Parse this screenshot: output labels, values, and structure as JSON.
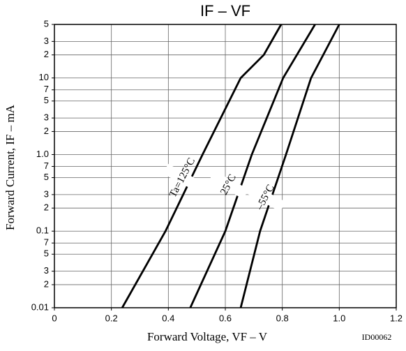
{
  "chart_data": {
    "type": "line",
    "title": "IF – VF",
    "xlabel": "Forward Voltage, VF – V",
    "ylabel": "Forward Current, IF – mA",
    "note": "ID00062",
    "log_y": true,
    "grid": true,
    "xlim": [
      0,
      1.2
    ],
    "xticks": [
      0,
      0.2,
      0.4,
      0.6,
      0.8,
      {
        "value": 1.0,
        "label": "1.0"
      },
      1.2
    ],
    "ylim": [
      0.01,
      50
    ],
    "yticks": [
      0.01,
      {
        "value": 0.02,
        "label": "2"
      },
      {
        "value": 0.03,
        "label": "3"
      },
      {
        "value": 0.05,
        "label": "5"
      },
      {
        "value": 0.07,
        "label": "7"
      },
      0.1,
      {
        "value": 0.2,
        "label": "2"
      },
      {
        "value": 0.3,
        "label": "3"
      },
      {
        "value": 0.5,
        "label": "5"
      },
      {
        "value": 0.7,
        "label": "7"
      },
      {
        "value": 1,
        "label": "1.0"
      },
      {
        "value": 2,
        "label": "2"
      },
      {
        "value": 3,
        "label": "3"
      },
      {
        "value": 5,
        "label": "5"
      },
      {
        "value": 7,
        "label": "7"
      },
      10,
      {
        "value": 20,
        "label": "2"
      },
      {
        "value": 30,
        "label": "3"
      },
      {
        "value": 50,
        "label": "5"
      }
    ],
    "series": [
      {
        "name": "Ta=125°C",
        "color": "#000000",
        "x": [
          0.238,
          0.39,
          0.52,
          0.654,
          0.735,
          0.796
        ],
        "values": [
          0.01,
          0.1,
          1,
          10,
          20,
          50
        ]
      },
      {
        "name": "25°C",
        "color": "#000000",
        "x": [
          0.477,
          0.6,
          0.693,
          0.803,
          0.915
        ],
        "values": [
          0.01,
          0.1,
          1,
          10,
          50
        ]
      },
      {
        "name": "–55°C",
        "color": "#000000",
        "x": [
          0.654,
          0.722,
          0.813,
          0.901,
          1.0
        ],
        "values": [
          0.01,
          0.1,
          1,
          10,
          50
        ]
      }
    ]
  }
}
